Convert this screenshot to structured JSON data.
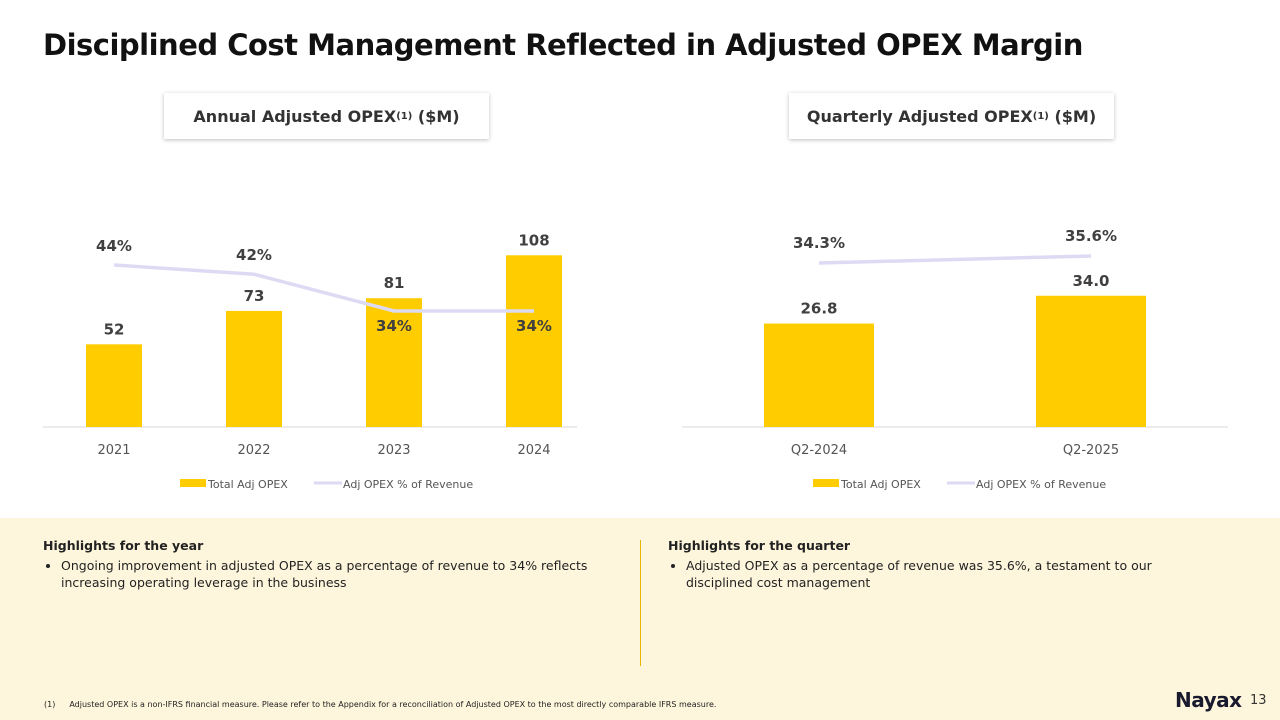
{
  "title": "Disciplined Cost Management Reflected in Adjusted OPEX Margin",
  "colors": {
    "bar": "#FFCC00",
    "line": "#DDDAF3",
    "panel": "#FEF6DC"
  },
  "chart_data": [
    {
      "type": "bar+line",
      "title": "Annual Adjusted OPEX",
      "title_sup": "(1)",
      "title_suffix": "($M)",
      "categories": [
        "2021",
        "2022",
        "2023",
        "2024"
      ],
      "series": [
        {
          "name": "Total Adj OPEX",
          "type": "bar",
          "values": [
            52,
            73,
            81,
            108
          ],
          "labels": [
            "52",
            "73",
            "81",
            "108"
          ]
        },
        {
          "name": "Adj OPEX  % of Revenue",
          "type": "line",
          "values": [
            44,
            42,
            34,
            34
          ],
          "labels": [
            "44%",
            "42%",
            "34%",
            "34%"
          ]
        }
      ],
      "legend": "bottom",
      "grid": false
    },
    {
      "type": "bar+line",
      "title": "Quarterly Adjusted OPEX",
      "title_sup": "(1)",
      "title_suffix": "($M)",
      "categories": [
        "Q2-2024",
        "Q2-2025"
      ],
      "series": [
        {
          "name": "Total Adj OPEX",
          "type": "bar",
          "values": [
            26.8,
            34.0
          ],
          "labels": [
            "26.8",
            "34.0"
          ]
        },
        {
          "name": "Adj OPEX  % of Revenue",
          "type": "line",
          "values": [
            34.3,
            35.6
          ],
          "labels": [
            "34.3%",
            "35.6%"
          ]
        }
      ],
      "legend": "bottom",
      "grid": false
    }
  ],
  "highlights": {
    "year": {
      "heading": "Highlights for the year",
      "bullet": "Ongoing improvement in adjusted OPEX as a percentage of revenue to 34% reflects increasing operating leverage in the business"
    },
    "quarter": {
      "heading": "Highlights for the quarter",
      "bullet": "Adjusted OPEX as a percentage of revenue was 35.6%, a testament to our disciplined cost management"
    }
  },
  "footnote": {
    "marker": "(1)",
    "text": "Adjusted OPEX is a non-IFRS financial measure. Please refer to the Appendix for a reconciliation of Adjusted OPEX to the most directly comparable IFRS measure."
  },
  "logo": "Nayax",
  "page_number": "13"
}
